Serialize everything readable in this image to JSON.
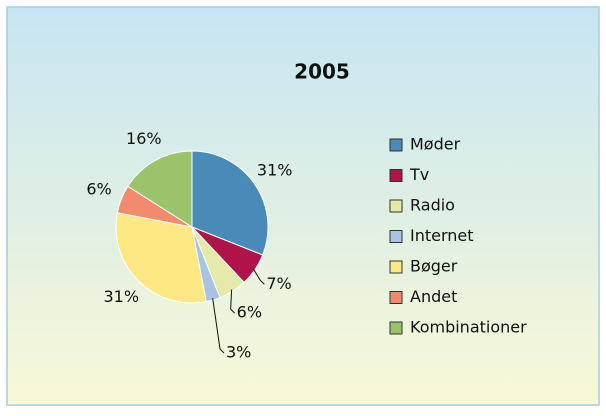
{
  "chart_data": {
    "type": "pie",
    "title": "2005",
    "categories": [
      "Møder",
      "Tv",
      "Radio",
      "Internet",
      "Bøger",
      "Andet",
      "Kombinationer"
    ],
    "values": [
      31,
      7,
      6,
      3,
      31,
      6,
      16
    ],
    "value_labels": [
      "31%",
      "7%",
      "6%",
      "3%",
      "31%",
      "6%",
      "16%"
    ],
    "colors": [
      "#4a8ab8",
      "#b0124a",
      "#e6eaa8",
      "#a9c4e0",
      "#fde883",
      "#f28a6e",
      "#9bc46a"
    ],
    "legend": "right"
  }
}
